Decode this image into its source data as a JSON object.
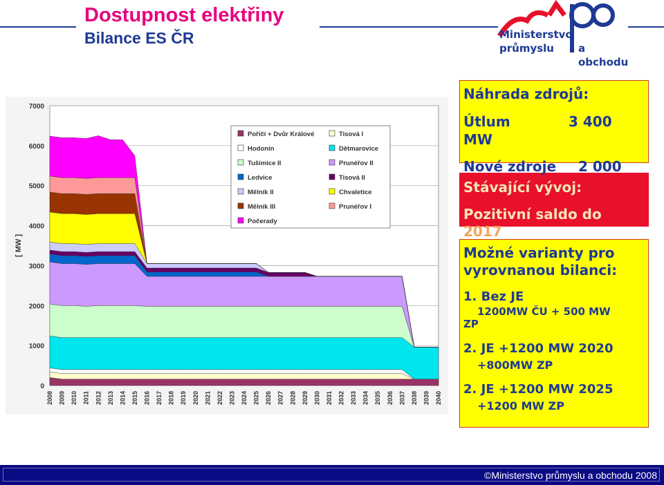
{
  "header": {
    "title": "Dostupnost elektřiny",
    "subtitle": "Bilance ES ČR"
  },
  "logo": {
    "line1": "Ministerstvo průmyslu",
    "line2": "a obchodu"
  },
  "panel": {
    "heading": "Náhrada zdrojů:",
    "utlum_label": "Útlum",
    "utlum_value": "3 400",
    "utlum_unit": "MW",
    "nove_label": "Nové zdroje",
    "nove_value": "2 000",
    "stavajici": "Stávající vývoj:",
    "saldo_line1": "Pozitivní saldo do",
    "saldo_line2": "2017",
    "varianty_line1": "Možné varianty pro",
    "varianty_line2": "vyrovnanou bilanci:",
    "v1_title": "1. Bez JE",
    "v1_detail": "1200MW ČU + 500 MW",
    "v1_zp": "ZP",
    "v2_title": "2. JE +1200 MW 2020",
    "v2_detail": "+800MW ZP",
    "v3_title": "2. JE +1200 MW 2025",
    "v3_detail": "+1200 MW ZP"
  },
  "footer": {
    "text": "©Ministerstvo průmyslu a obchodu 2008"
  },
  "chart_data": {
    "type": "area",
    "ylabel": "[ MW ]",
    "ylim": [
      0,
      7000
    ],
    "yticks": [
      "0",
      "1000",
      "2000",
      "3000",
      "4000",
      "5000",
      "6000",
      "7000"
    ],
    "x": [
      "2008",
      "2009",
      "2010",
      "2011",
      "2012",
      "2013",
      "2014",
      "2015",
      "2016",
      "2017",
      "2018",
      "2019",
      "2020",
      "2021",
      "2022",
      "2023",
      "2024",
      "2025",
      "2026",
      "2027",
      "2028",
      "2029",
      "2030",
      "2031",
      "2032",
      "2033",
      "2034",
      "2035",
      "2036",
      "2037",
      "2038",
      "2039",
      "2040"
    ],
    "legend_position": "top-right",
    "series": [
      {
        "name": "Poříčí + Dvůr Králové",
        "color": "#993366",
        "values": [
          200,
          160,
          160,
          160,
          160,
          160,
          160,
          160,
          160,
          160,
          160,
          160,
          160,
          160,
          160,
          160,
          160,
          160,
          160,
          160,
          160,
          160,
          160,
          160,
          160,
          160,
          160,
          160,
          160,
          160,
          160,
          160,
          160
        ]
      },
      {
        "name": "Tisová I",
        "color": "#ffffcc",
        "values": [
          140,
          140,
          140,
          140,
          140,
          140,
          140,
          140,
          140,
          140,
          140,
          140,
          140,
          140,
          140,
          140,
          140,
          140,
          140,
          140,
          140,
          140,
          140,
          140,
          140,
          140,
          140,
          140,
          140,
          140,
          0,
          0,
          0
        ]
      },
      {
        "name": "Hodonín",
        "color": "#ffffff",
        "values": [
          100,
          100,
          100,
          100,
          100,
          100,
          100,
          100,
          100,
          100,
          100,
          100,
          100,
          100,
          100,
          100,
          100,
          100,
          100,
          100,
          100,
          100,
          100,
          100,
          100,
          100,
          100,
          100,
          100,
          100,
          0,
          0,
          0
        ]
      },
      {
        "name": "Dětmarovice",
        "color": "#00e5ee",
        "values": [
          800,
          800,
          800,
          800,
          800,
          800,
          800,
          800,
          800,
          800,
          800,
          800,
          800,
          800,
          800,
          800,
          800,
          800,
          800,
          800,
          800,
          800,
          800,
          800,
          800,
          800,
          800,
          800,
          800,
          800,
          800,
          800,
          800
        ]
      },
      {
        "name": "Tušimice II",
        "color": "#ccffcc",
        "values": [
          800,
          800,
          800,
          780,
          800,
          800,
          800,
          800,
          780,
          780,
          780,
          780,
          780,
          780,
          780,
          780,
          780,
          780,
          780,
          780,
          780,
          780,
          780,
          780,
          780,
          780,
          780,
          780,
          780,
          780,
          0,
          0,
          0
        ]
      },
      {
        "name": "Prunéřov II",
        "color": "#cc99ff",
        "values": [
          1050,
          1050,
          1050,
          1050,
          1050,
          1050,
          1050,
          1050,
          750,
          750,
          750,
          750,
          750,
          750,
          750,
          750,
          750,
          750,
          750,
          750,
          750,
          750,
          750,
          750,
          750,
          750,
          750,
          750,
          750,
          750,
          0,
          0,
          0
        ]
      },
      {
        "name": "Ledvice",
        "color": "#0066cc",
        "values": [
          200,
          200,
          200,
          200,
          200,
          200,
          200,
          200,
          110,
          110,
          110,
          110,
          110,
          110,
          110,
          110,
          110,
          110,
          0,
          0,
          0,
          0,
          0,
          0,
          0,
          0,
          0,
          0,
          0,
          0,
          0,
          0,
          0
        ]
      },
      {
        "name": "Tisová II",
        "color": "#660066",
        "values": [
          100,
          100,
          100,
          100,
          100,
          100,
          100,
          100,
          100,
          100,
          100,
          100,
          100,
          100,
          100,
          100,
          100,
          100,
          100,
          100,
          100,
          100,
          0,
          0,
          0,
          0,
          0,
          0,
          0,
          0,
          0,
          0,
          0
        ]
      },
      {
        "name": "Mělník II",
        "color": "#ccccff",
        "values": [
          200,
          200,
          200,
          200,
          200,
          200,
          200,
          200,
          110,
          110,
          110,
          110,
          110,
          110,
          110,
          110,
          110,
          110,
          0,
          0,
          0,
          0,
          0,
          0,
          0,
          0,
          0,
          0,
          0,
          0,
          0,
          0,
          0
        ]
      },
      {
        "name": "Chvaletice",
        "color": "#ffff00",
        "values": [
          750,
          750,
          750,
          750,
          750,
          750,
          750,
          750,
          0,
          0,
          0,
          0,
          0,
          0,
          0,
          0,
          0,
          0,
          0,
          0,
          0,
          0,
          0,
          0,
          0,
          0,
          0,
          0,
          0,
          0,
          0,
          0,
          0
        ]
      },
      {
        "name": "Mělník III",
        "color": "#993300",
        "values": [
          500,
          500,
          500,
          500,
          500,
          500,
          500,
          500,
          0,
          0,
          0,
          0,
          0,
          0,
          0,
          0,
          0,
          0,
          0,
          0,
          0,
          0,
          0,
          0,
          0,
          0,
          0,
          0,
          0,
          0,
          0,
          0,
          0
        ]
      },
      {
        "name": "Prunéřov I",
        "color": "#ff9999",
        "values": [
          400,
          400,
          400,
          400,
          400,
          400,
          400,
          400,
          0,
          0,
          0,
          0,
          0,
          0,
          0,
          0,
          0,
          0,
          0,
          0,
          0,
          0,
          0,
          0,
          0,
          0,
          0,
          0,
          0,
          0,
          0,
          0,
          0
        ]
      },
      {
        "name": "Počerady",
        "color": "#ff00ff",
        "values": [
          1000,
          1000,
          1000,
          1000,
          1050,
          950,
          950,
          550,
          0,
          0,
          0,
          0,
          0,
          0,
          0,
          0,
          0,
          0,
          0,
          0,
          0,
          0,
          0,
          0,
          0,
          0,
          0,
          0,
          0,
          0,
          0,
          0,
          0
        ]
      }
    ],
    "legend": [
      [
        "Poříčí + Dvůr Králové",
        "Tisová I"
      ],
      [
        "Hodonín",
        "Dětmarovice"
      ],
      [
        "Tušimice II",
        "Prunéřov II"
      ],
      [
        "Ledvice",
        "Tisová II"
      ],
      [
        "Mělník II",
        "Chvaletice"
      ],
      [
        "Mělník III",
        "Prunéřov I"
      ],
      [
        "Počerady",
        ""
      ]
    ]
  }
}
